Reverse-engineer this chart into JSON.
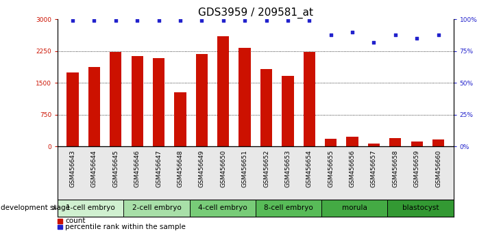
{
  "title": "GDS3959 / 209581_at",
  "samples": [
    "GSM456643",
    "GSM456644",
    "GSM456645",
    "GSM456646",
    "GSM456647",
    "GSM456648",
    "GSM456649",
    "GSM456650",
    "GSM456651",
    "GSM456652",
    "GSM456653",
    "GSM456654",
    "GSM456655",
    "GSM456656",
    "GSM456657",
    "GSM456658",
    "GSM456659",
    "GSM456660"
  ],
  "counts": [
    1750,
    1870,
    2230,
    2130,
    2080,
    1270,
    2180,
    2600,
    2330,
    1820,
    1660,
    2230,
    175,
    225,
    60,
    195,
    120,
    170
  ],
  "percentiles": [
    99,
    99,
    99,
    99,
    99,
    99,
    99,
    99,
    99,
    99,
    99,
    99,
    88,
    90,
    82,
    88,
    85,
    88
  ],
  "groups": [
    {
      "label": "1-cell embryo",
      "start": 0,
      "end": 3,
      "color": "#d0f0d0"
    },
    {
      "label": "2-cell embryo",
      "start": 3,
      "end": 6,
      "color": "#a8dfa8"
    },
    {
      "label": "4-cell embryo",
      "start": 6,
      "end": 9,
      "color": "#78cc78"
    },
    {
      "label": "8-cell embryo",
      "start": 9,
      "end": 12,
      "color": "#58bb58"
    },
    {
      "label": "morula",
      "start": 12,
      "end": 15,
      "color": "#44aa44"
    },
    {
      "label": "blastocyst",
      "start": 15,
      "end": 18,
      "color": "#339933"
    }
  ],
  "bar_color": "#cc1100",
  "dot_color": "#2222cc",
  "ylim_left": [
    0,
    3000
  ],
  "ylim_right": [
    0,
    100
  ],
  "yticks_left": [
    0,
    750,
    1500,
    2250,
    3000
  ],
  "yticks_right": [
    0,
    25,
    50,
    75,
    100
  ],
  "grid_values": [
    750,
    1500,
    2250
  ],
  "dev_stage_label": "development stage",
  "legend_count_label": "count",
  "legend_pct_label": "percentile rank within the sample",
  "bar_width": 0.55,
  "title_fontsize": 11,
  "tick_fontsize": 6.5,
  "label_fontsize": 7.5,
  "group_label_fontsize": 7.5
}
